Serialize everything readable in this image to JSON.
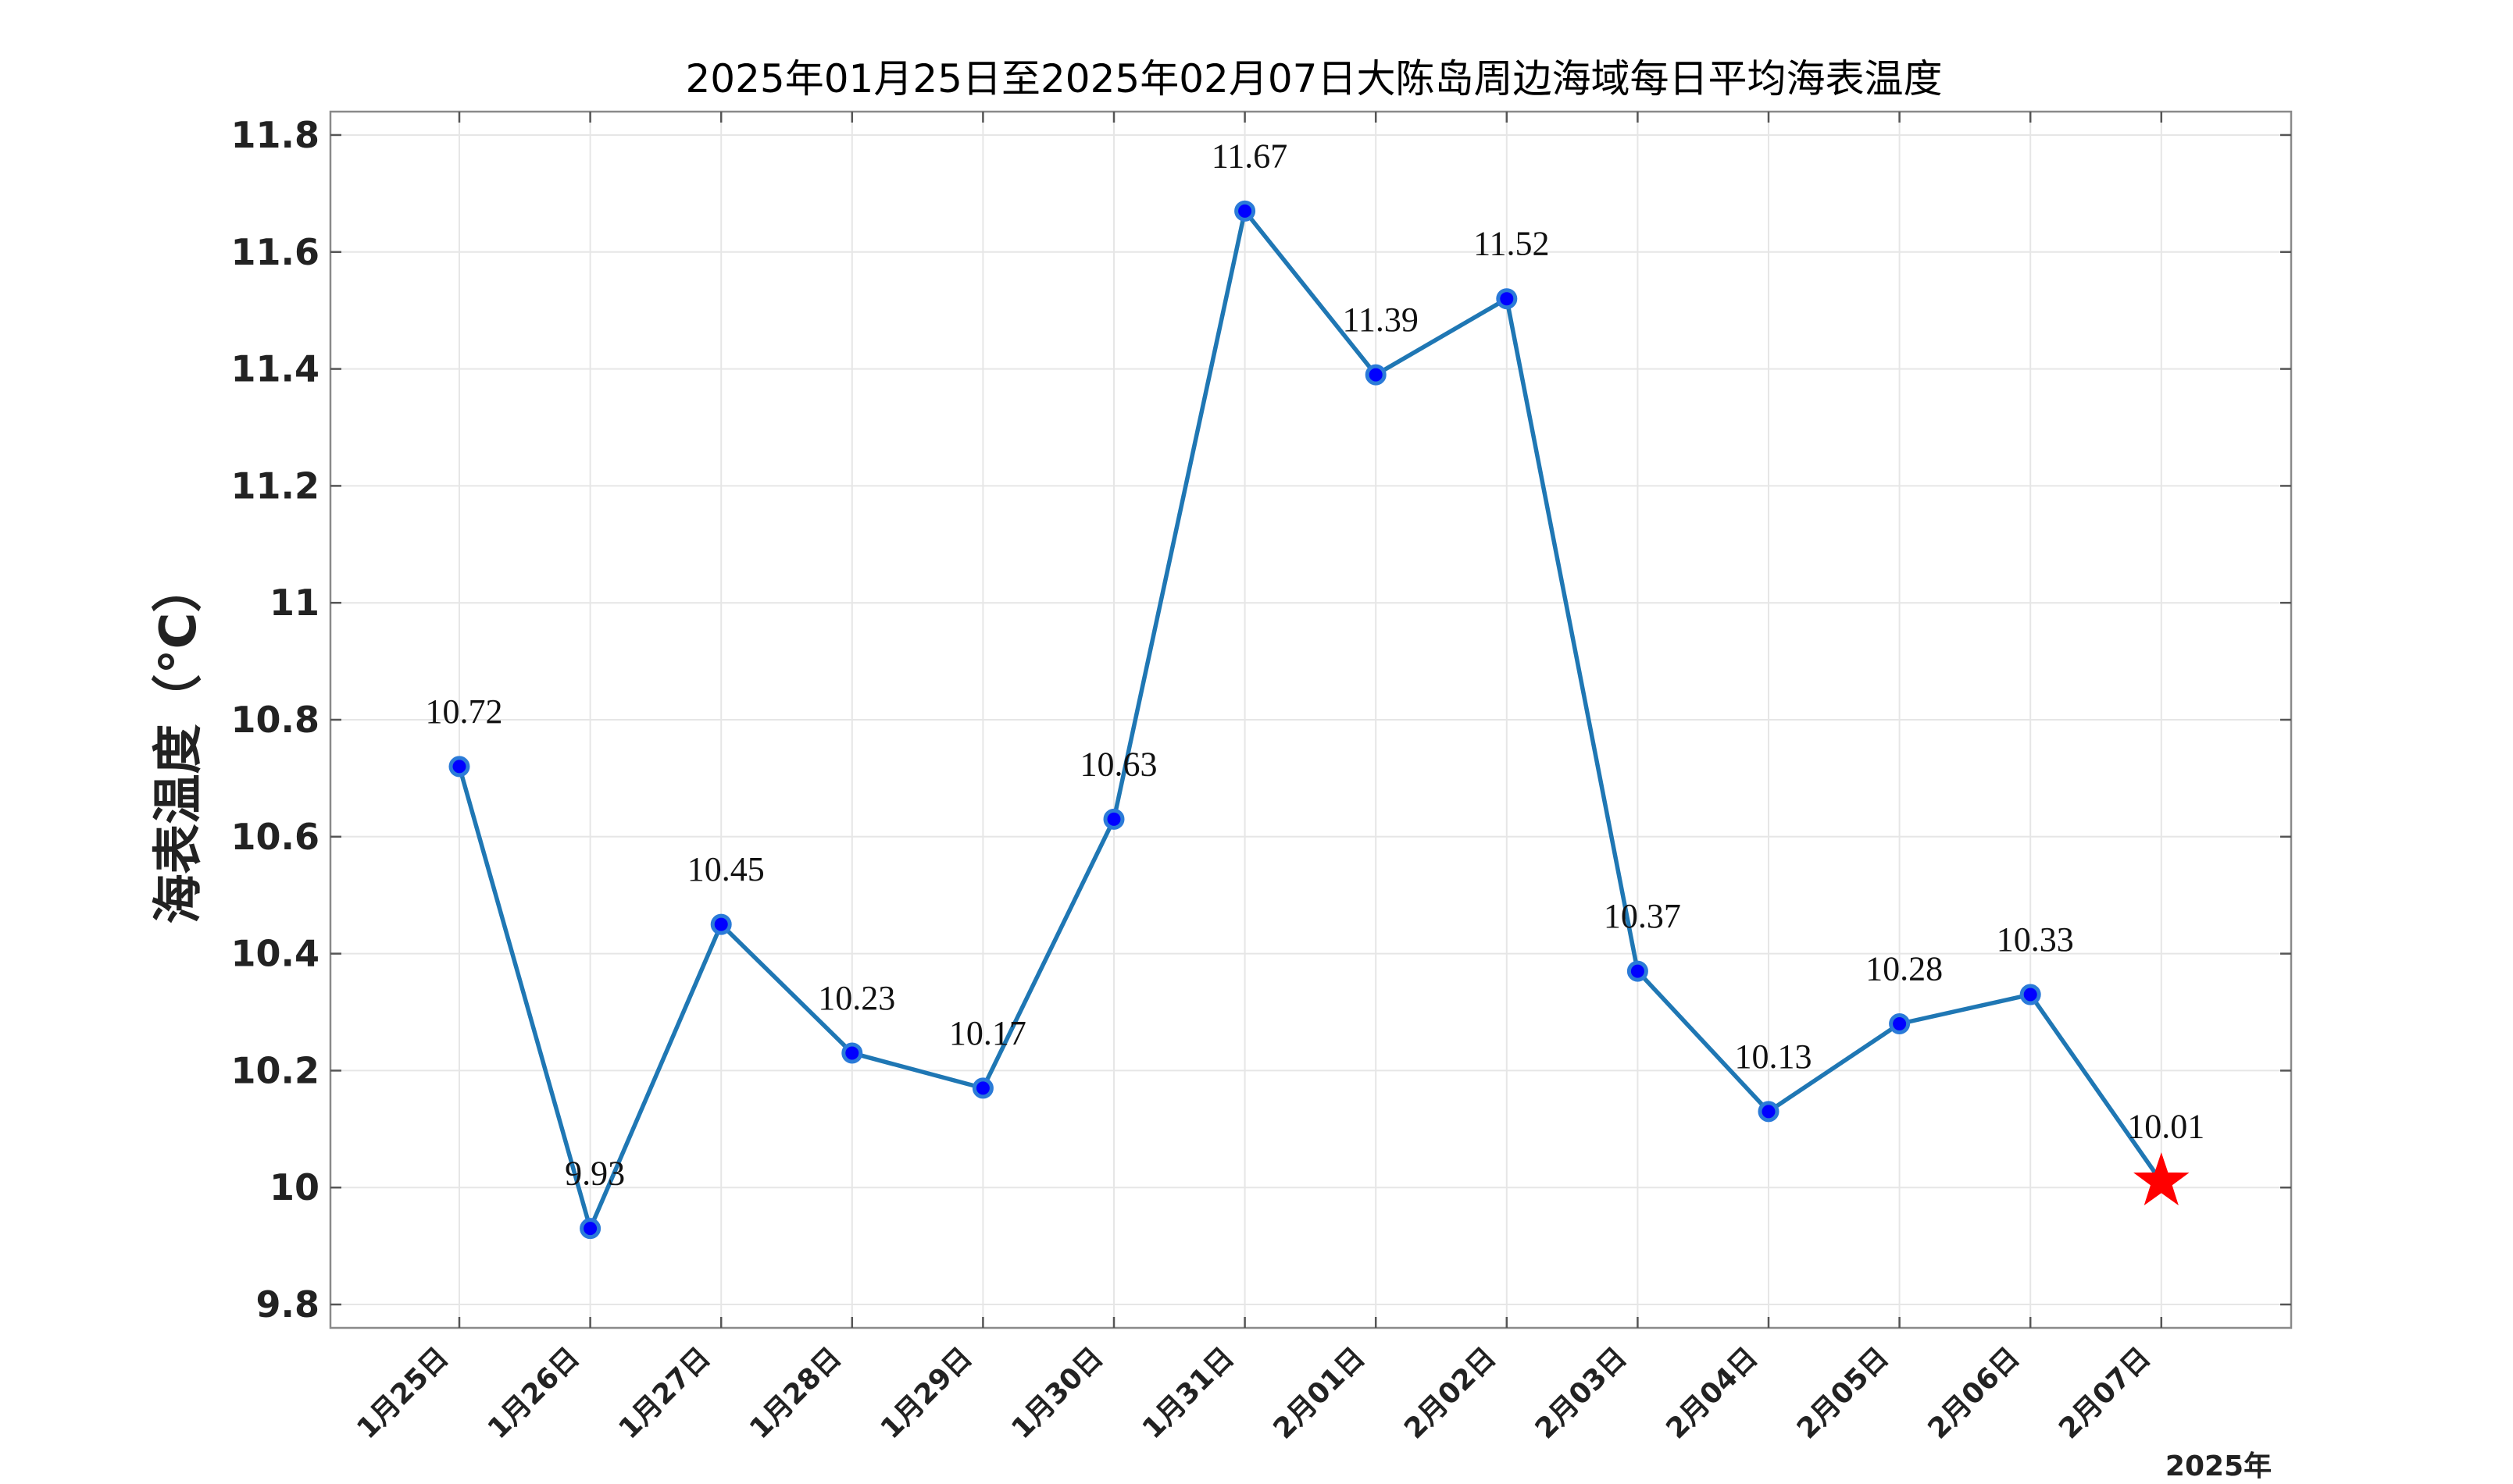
{
  "chart_data": {
    "type": "line",
    "title": "2025年01月25日至2025年02月07日大陈岛周边海域每日平均海表温度",
    "ylabel": "海表温度（°C）",
    "xlabel_suffix": "2025年",
    "categories": [
      "1月25日",
      "1月26日",
      "1月27日",
      "1月28日",
      "1月29日",
      "1月30日",
      "1月31日",
      "2月01日",
      "2月02日",
      "2月03日",
      "2月04日",
      "2月05日",
      "2月06日",
      "2月07日"
    ],
    "series": [
      {
        "values": [
          10.72,
          9.93,
          10.45,
          10.23,
          10.17,
          10.63,
          11.67,
          11.39,
          11.52,
          10.37,
          10.13,
          10.28,
          10.33,
          10.01
        ],
        "labels": [
          "10.72",
          "9.93",
          "10.45",
          "10.23",
          "10.17",
          "10.63",
          "11.67",
          "11.39",
          "11.52",
          "10.37",
          "10.13",
          "10.28",
          "10.33",
          "10.01"
        ]
      }
    ],
    "ylim": [
      9.76,
      11.84
    ],
    "yticks": [
      9.8,
      10,
      10.2,
      10.4,
      10.6,
      10.8,
      11,
      11.2,
      11.4,
      11.6,
      11.8
    ],
    "ytick_labels": [
      "9.8",
      "10",
      "10.2",
      "10.4",
      "10.6",
      "10.8",
      "11",
      "11.2",
      "11.4",
      "11.6",
      "11.8"
    ],
    "grid": true,
    "last_point_marker": "star",
    "colors": {
      "line": "#1f77b4",
      "marker_fill": "#0000ff",
      "marker_edge": "#2b7bd8",
      "star": "#ff0000"
    }
  }
}
